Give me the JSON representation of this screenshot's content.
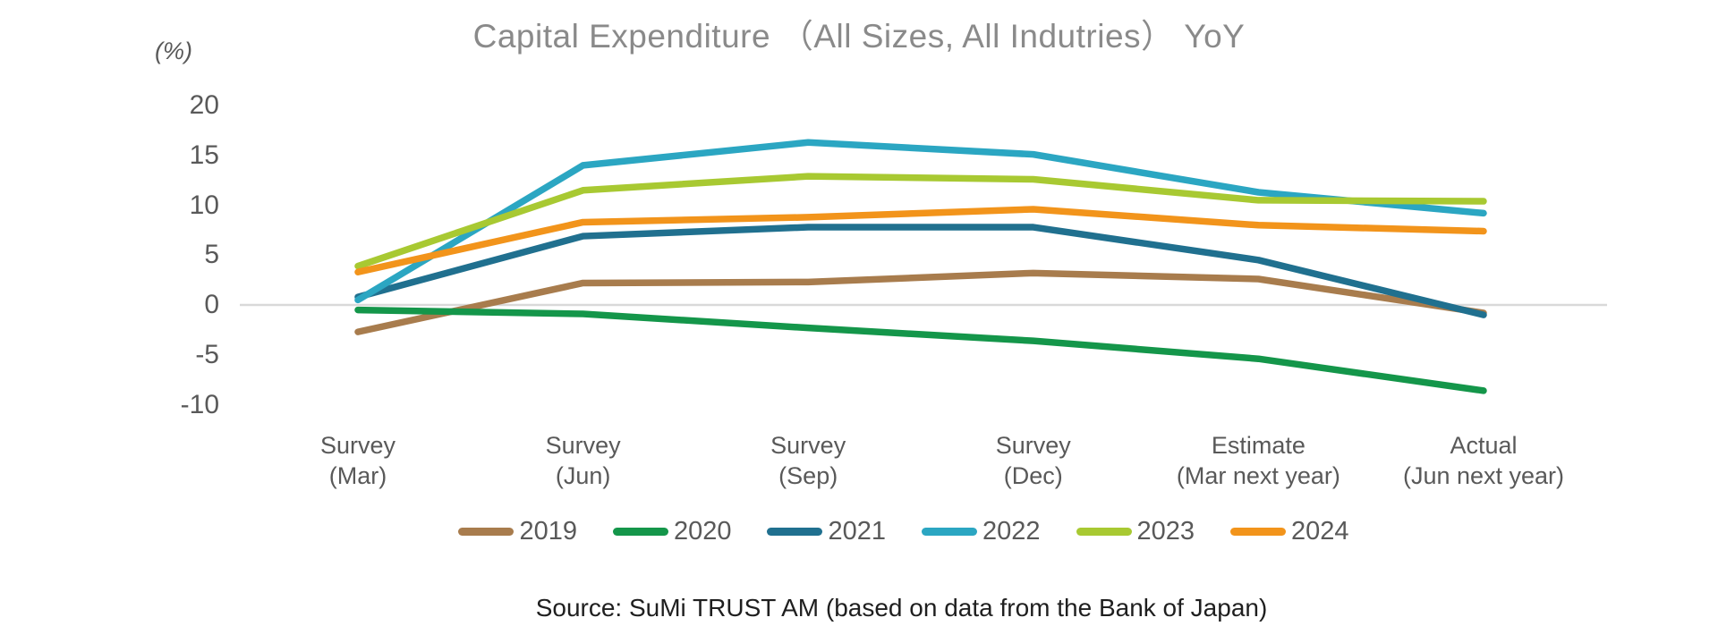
{
  "chart_data": {
    "type": "line",
    "title": "Capital Expenditure （All Sizes, All Indutries） YoY",
    "y_axis_unit": "(%)",
    "xlabel": "",
    "ylabel": "",
    "ylim": [
      -10,
      20
    ],
    "y_ticks": [
      20,
      15,
      10,
      5,
      0,
      -5,
      -10
    ],
    "grid": "zero-line-only",
    "legend_position": "bottom",
    "categories": [
      [
        "Survey",
        "(Mar)"
      ],
      [
        "Survey",
        "(Jun)"
      ],
      [
        "Survey",
        "(Sep)"
      ],
      [
        "Survey",
        "(Dec)"
      ],
      [
        "Estimate",
        "(Mar next year)"
      ],
      [
        "Actual",
        "(Jun next year)"
      ]
    ],
    "series": [
      {
        "name": "2019",
        "color": "#A87C4D",
        "values": [
          -2.7,
          2.2,
          2.3,
          3.2,
          2.6,
          -0.8
        ]
      },
      {
        "name": "2020",
        "color": "#14964A",
        "values": [
          -0.5,
          -0.9,
          -2.3,
          -3.6,
          -5.4,
          -8.6
        ]
      },
      {
        "name": "2021",
        "color": "#20708F",
        "values": [
          0.8,
          6.9,
          7.8,
          7.8,
          4.5,
          -1.0
        ]
      },
      {
        "name": "2022",
        "color": "#2BA6C2",
        "values": [
          0.5,
          14.0,
          16.3,
          15.1,
          11.3,
          9.2
        ]
      },
      {
        "name": "2023",
        "color": "#A8C932",
        "values": [
          3.9,
          11.5,
          12.9,
          12.6,
          10.5,
          10.4
        ]
      },
      {
        "name": "2024",
        "color": "#F2941B",
        "values": [
          3.3,
          8.3,
          8.8,
          9.6,
          8.0,
          7.4
        ]
      }
    ]
  },
  "footer": {
    "source": "Source: SuMi TRUST AM (based on data from the Bank of Japan)"
  },
  "theme": {
    "title_color": "#8A8A8A",
    "axis_text_color": "#595959",
    "gridline_color": "#D9D9D9",
    "source_text_color": "#1F1F1F",
    "background": "#FFFFFF"
  }
}
